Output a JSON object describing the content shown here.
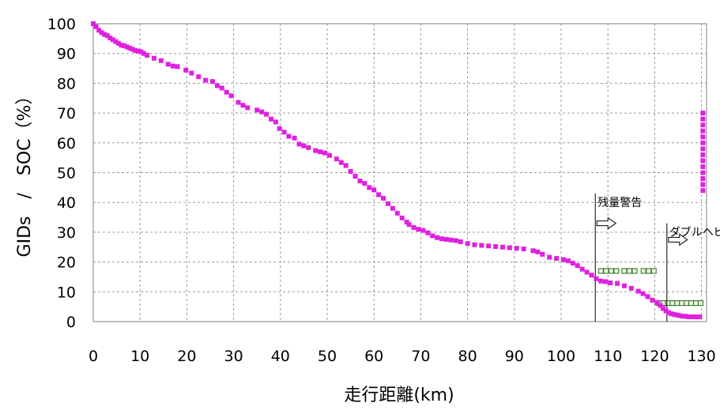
{
  "chart_data": {
    "type": "scatter",
    "xlabel": "走行距離(km)",
    "ylabel": "GIDs　/　SOC（%）",
    "xlim": [
      0,
      131.5
    ],
    "ylim": [
      0,
      100
    ],
    "x_ticks": [
      "0",
      "10",
      "20",
      "30",
      "40",
      "50",
      "60",
      "70",
      "80",
      "90",
      "100",
      "110",
      "120",
      "130"
    ],
    "y_ticks": [
      "0",
      "10",
      "20",
      "30",
      "40",
      "50",
      "60",
      "70",
      "80",
      "90",
      "100"
    ],
    "grid": true,
    "colors": {
      "main": "#e020e0",
      "secondary_fill": "#e8f5d8",
      "secondary_edge": "#2a6a2a"
    },
    "series": [
      {
        "marker": "filled-square",
        "points": [
          [
            0,
            100
          ],
          [
            0.6,
            99
          ],
          [
            1.2,
            97.8
          ],
          [
            1.8,
            97
          ],
          [
            2.4,
            96.4
          ],
          [
            3,
            96
          ],
          [
            3.6,
            95.2
          ],
          [
            4.2,
            94.6
          ],
          [
            4.8,
            94
          ],
          [
            5.4,
            93.4
          ],
          [
            6,
            92.8
          ],
          [
            6.6,
            92.6
          ],
          [
            7.2,
            92.2
          ],
          [
            7.8,
            91.8
          ],
          [
            8.4,
            91.4
          ],
          [
            9,
            91
          ],
          [
            9.6,
            90.8
          ],
          [
            10.2,
            90.6
          ],
          [
            10.8,
            90
          ],
          [
            11.5,
            89.4
          ],
          [
            13,
            88.4
          ],
          [
            14.5,
            87.6
          ],
          [
            16,
            86.4
          ],
          [
            17,
            85.8
          ],
          [
            18,
            85.6
          ],
          [
            19.8,
            84.4
          ],
          [
            21,
            83.4
          ],
          [
            22.5,
            82.2
          ],
          [
            24,
            81
          ],
          [
            25.5,
            80.6
          ],
          [
            26.5,
            79.2
          ],
          [
            27.5,
            78.4
          ],
          [
            28.5,
            77
          ],
          [
            29.5,
            75.8
          ],
          [
            31,
            73.6
          ],
          [
            32,
            72.6
          ],
          [
            33,
            71.8
          ],
          [
            35,
            71
          ],
          [
            36,
            70.4
          ],
          [
            37,
            69.6
          ],
          [
            38,
            68
          ],
          [
            39,
            67
          ],
          [
            39.8,
            64.8
          ],
          [
            40.8,
            63.6
          ],
          [
            41.8,
            62.2
          ],
          [
            43,
            61.6
          ],
          [
            44,
            59.6
          ],
          [
            45,
            59
          ],
          [
            46,
            58.4
          ],
          [
            47.5,
            57.4
          ],
          [
            48.5,
            57
          ],
          [
            49.5,
            56.6
          ],
          [
            50.5,
            55.8
          ],
          [
            52,
            54.6
          ],
          [
            53,
            53.4
          ],
          [
            54,
            52.4
          ],
          [
            55,
            50.4
          ],
          [
            56,
            48.8
          ],
          [
            57,
            47.2
          ],
          [
            58,
            46.4
          ],
          [
            59,
            45
          ],
          [
            60,
            44.2
          ],
          [
            61,
            42.6
          ],
          [
            62,
            41.4
          ],
          [
            63,
            39.6
          ],
          [
            64,
            38
          ],
          [
            65,
            36.4
          ],
          [
            66,
            34.8
          ],
          [
            67,
            33.4
          ],
          [
            67.5,
            32.6
          ],
          [
            68.5,
            31.6
          ],
          [
            69.5,
            31
          ],
          [
            70.5,
            30.6
          ],
          [
            71.5,
            29.8
          ],
          [
            72.5,
            28.8
          ],
          [
            73.5,
            28.2
          ],
          [
            74.5,
            27.8
          ],
          [
            75.5,
            27.6
          ],
          [
            76.5,
            27.4
          ],
          [
            77.5,
            27.2
          ],
          [
            78.5,
            26.8
          ],
          [
            80,
            26.2
          ],
          [
            81.5,
            25.8
          ],
          [
            83,
            25.6
          ],
          [
            84.5,
            25.4
          ],
          [
            86,
            25.2
          ],
          [
            87.5,
            25
          ],
          [
            89,
            24.8
          ],
          [
            90.5,
            24.6
          ],
          [
            92,
            24.4
          ],
          [
            94,
            23.8
          ],
          [
            95,
            23.4
          ],
          [
            96,
            22.6
          ],
          [
            97.5,
            21.6
          ],
          [
            99,
            21.2
          ],
          [
            100.5,
            20.8
          ],
          [
            101.5,
            20.4
          ],
          [
            102.5,
            19.6
          ],
          [
            103.5,
            18.8
          ],
          [
            104.5,
            17.6
          ],
          [
            105.5,
            16.6
          ],
          [
            106.5,
            15.6
          ],
          [
            107.5,
            14.4
          ],
          [
            108.5,
            13.6
          ],
          [
            109.5,
            13.4
          ],
          [
            110.5,
            13
          ],
          [
            112,
            12.8
          ],
          [
            113.5,
            12
          ],
          [
            115,
            11.2
          ],
          [
            116.5,
            10.2
          ],
          [
            117.5,
            9.4
          ],
          [
            118.5,
            8.4
          ],
          [
            119.5,
            7.2
          ],
          [
            120.5,
            6.4
          ],
          [
            121.2,
            5.4
          ],
          [
            121.8,
            4.4
          ],
          [
            122.4,
            3.6
          ],
          [
            123,
            3
          ],
          [
            123.6,
            2.6
          ],
          [
            124.2,
            2.4
          ],
          [
            124.8,
            2.2
          ],
          [
            125.4,
            2
          ],
          [
            126,
            1.8
          ],
          [
            126.6,
            1.8
          ],
          [
            127.2,
            1.6
          ],
          [
            127.8,
            1.6
          ],
          [
            128.4,
            1.6
          ],
          [
            129,
            1.6
          ],
          [
            129.6,
            1.6
          ],
          [
            130.3,
            44
          ],
          [
            130.3,
            46
          ],
          [
            130.3,
            48
          ],
          [
            130.3,
            50
          ],
          [
            130.3,
            52
          ],
          [
            130.3,
            54
          ],
          [
            130.3,
            56
          ],
          [
            130.3,
            58
          ],
          [
            130.3,
            60
          ],
          [
            130.3,
            62
          ],
          [
            130.3,
            64
          ],
          [
            130.3,
            66
          ],
          [
            130.3,
            68
          ],
          [
            130.3,
            70
          ]
        ]
      },
      {
        "marker": "hollow-square",
        "points": [
          [
            108.5,
            17
          ],
          [
            109.6,
            17
          ],
          [
            110.7,
            17
          ],
          [
            111.8,
            17
          ],
          [
            113.5,
            17
          ],
          [
            114.6,
            17
          ],
          [
            115.7,
            17
          ],
          [
            117.6,
            17
          ],
          [
            118.7,
            17
          ],
          [
            119.8,
            17
          ],
          [
            120.8,
            6.2
          ],
          [
            121.8,
            6.2
          ],
          [
            122.8,
            6.2
          ],
          [
            123.8,
            6.2
          ],
          [
            124.8,
            6.2
          ],
          [
            125.8,
            6.2
          ],
          [
            126.8,
            6.2
          ],
          [
            127.8,
            6.2
          ],
          [
            128.8,
            6.2
          ],
          [
            129.8,
            6.2
          ]
        ]
      }
    ],
    "annotations": [
      {
        "label": "残量警告",
        "x": 107.3,
        "y_top": 43,
        "y_arrow": 33
      },
      {
        "label": "ダブルヘビ",
        "x": 122.6,
        "y_top": 33,
        "y_arrow": 27.5
      }
    ]
  }
}
